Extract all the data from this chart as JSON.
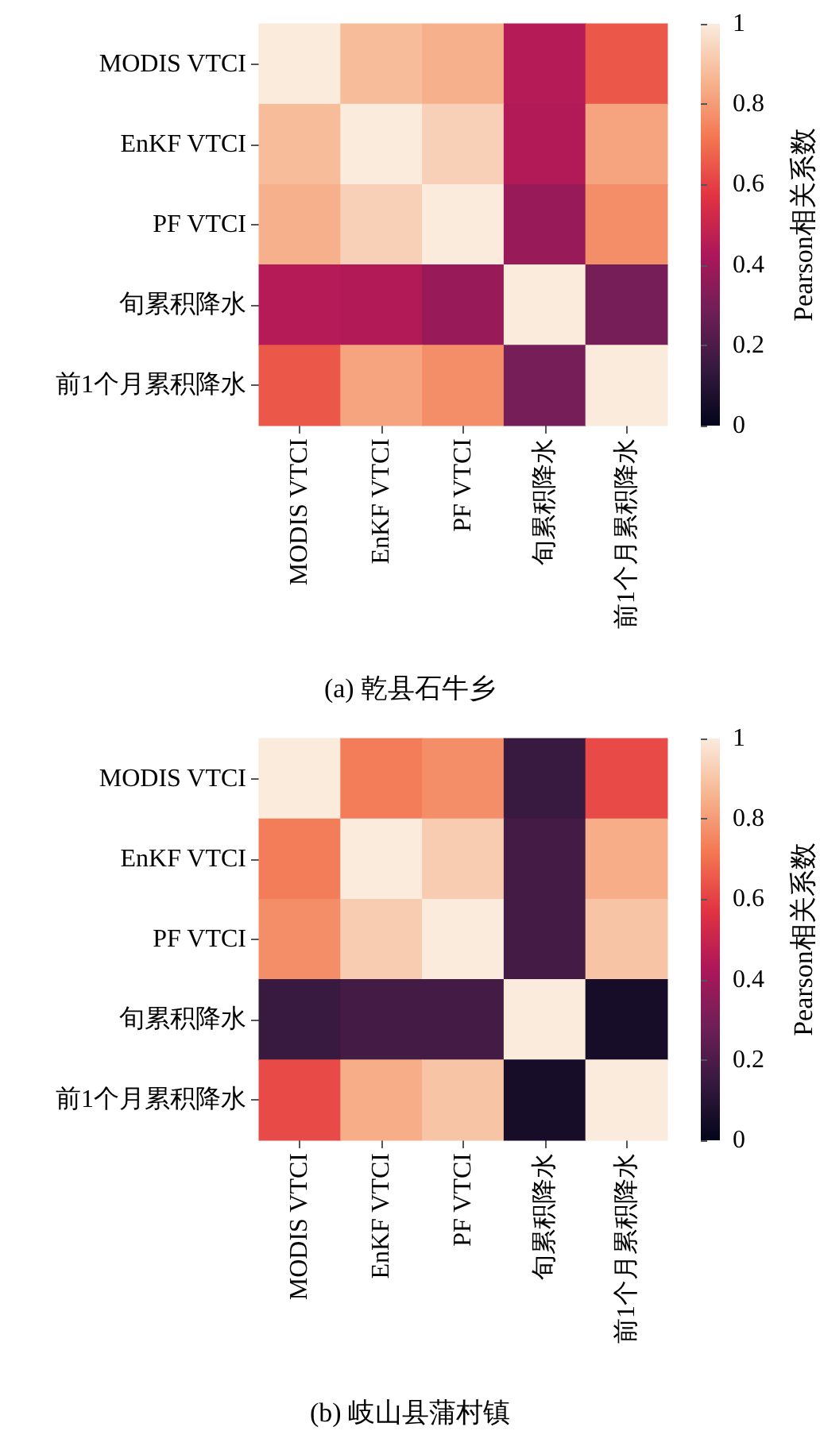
{
  "chart_data": [
    {
      "type": "heatmap",
      "title": "(a) 乾县石牛乡",
      "categories": [
        "MODIS VTCI",
        "EnKF VTCI",
        "PF VTCI",
        "旬累积降水",
        "前1个月累积降水"
      ],
      "y_categories": [
        "MODIS VTCI",
        "EnKF VTCI",
        "PF VTCI",
        "旬累积降水",
        "前1个月累积降水"
      ],
      "cells": [
        [
          1,
          0.88,
          0.85,
          0.45,
          0.65
        ],
        [
          0.88,
          1,
          0.93,
          0.44,
          0.82
        ],
        [
          0.85,
          0.93,
          1,
          0.38,
          0.77
        ],
        [
          0.45,
          0.44,
          0.38,
          1,
          0.3
        ],
        [
          0.65,
          0.82,
          0.77,
          0.3,
          1
        ]
      ],
      "clim": [
        0,
        1
      ],
      "cticks": [
        0,
        0.2,
        0.4,
        0.6,
        0.8,
        1.0
      ],
      "clabel": "Pearson相关系数"
    },
    {
      "type": "heatmap",
      "title": "(b) 岐山县蒲村镇",
      "categories": [
        "MODIS VTCI",
        "EnKF VTCI",
        "PF VTCI",
        "旬累积降水",
        "前1个月累积降水"
      ],
      "y_categories": [
        "MODIS VTCI",
        "EnKF VTCI",
        "PF VTCI",
        "旬累积降水",
        "前1个月累积降水"
      ],
      "cells": [
        [
          1,
          0.73,
          0.77,
          0.15,
          0.62
        ],
        [
          0.73,
          1,
          0.92,
          0.18,
          0.84
        ],
        [
          0.77,
          0.92,
          1,
          0.18,
          0.9
        ],
        [
          0.15,
          0.18,
          0.18,
          1,
          0.06
        ],
        [
          0.62,
          0.84,
          0.9,
          0.06,
          1
        ]
      ],
      "clim": [
        0,
        1
      ],
      "cticks": [
        0,
        0.2,
        0.4,
        0.6,
        0.8,
        1.0
      ],
      "clabel": "Pearson相关系数"
    }
  ]
}
